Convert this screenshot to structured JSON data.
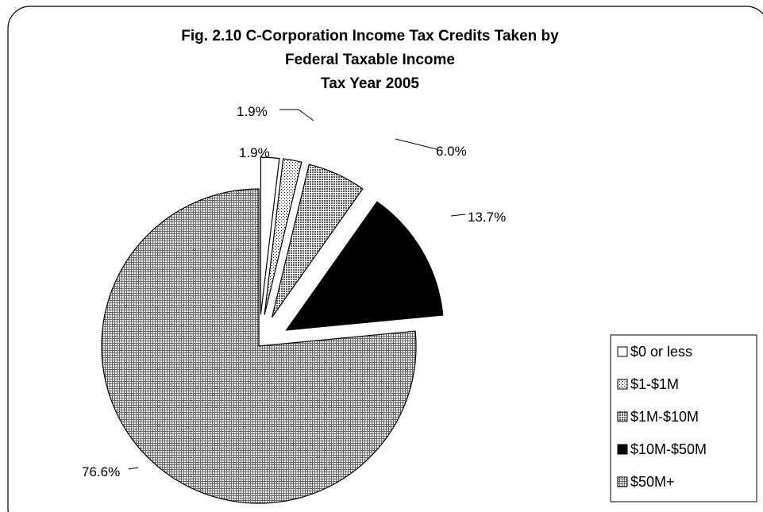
{
  "chart_data": {
    "type": "pie",
    "title_lines": [
      "Fig. 2.10  C-Corporation Income Tax Credits Taken by",
      "Federal Taxable Income",
      "Tax Year 2005"
    ],
    "categories": [
      "$0 or less",
      "$1-$1M",
      "$1M-$10M",
      "$10M-$50M",
      "$50M+"
    ],
    "values": [
      1.9,
      1.9,
      6.0,
      13.7,
      76.6
    ],
    "value_labels": [
      "1.9%",
      "1.9%",
      "6.0%",
      "13.7%",
      "76.6%"
    ],
    "exploded": true,
    "legend_position": "bottom-right"
  },
  "colors": {
    "slice_0": "#ffffff",
    "slice_1": "#e6e6e6",
    "slice_2": "#9a9a9a",
    "slice_3": "#000000",
    "slice_4": "#dcdcdc"
  }
}
